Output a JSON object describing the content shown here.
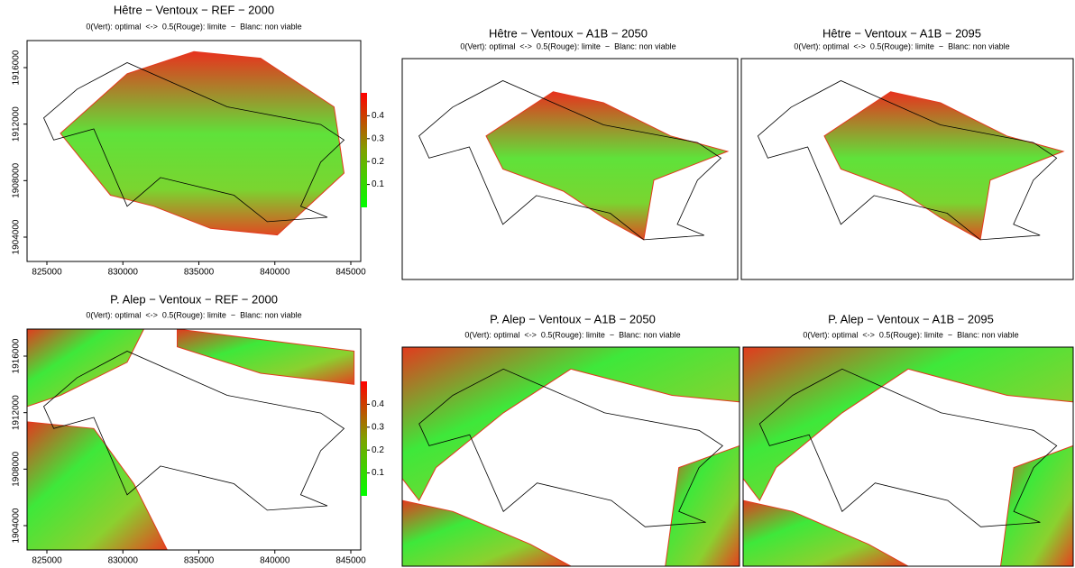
{
  "panels": [
    {
      "title": "Hêtre − Ventoux − REF − 2000",
      "subtitle": "0(Vert): optimal  <->  0.5(Rouge): limite  −  Blanc: non viable",
      "x_ticks": [
        825000,
        830000,
        835000,
        840000,
        845000
      ],
      "y_ticks": [
        1904000,
        1908000,
        1912000,
        1916000
      ],
      "colorbar_ticks": [
        0.1,
        0.2,
        0.3,
        0.4
      ]
    },
    {
      "title": "Hêtre − Ventoux − A1B − 2050",
      "subtitle": "0(Vert): optimal  <->  0.5(Rouge): limite  −  Blanc: non viable"
    },
    {
      "title": "Hêtre − Ventoux − A1B − 2095",
      "subtitle": "0(Vert): optimal  <->  0.5(Rouge): limite  −  Blanc: non viable"
    },
    {
      "title": "P. Alep − Ventoux − REF − 2000",
      "subtitle": "0(Vert): optimal  <->  0.5(Rouge): limite  −  Blanc: non viable",
      "x_ticks": [
        825000,
        830000,
        835000,
        840000,
        845000
      ],
      "y_ticks": [
        1904000,
        1908000,
        1912000,
        1916000
      ],
      "colorbar_ticks": [
        0.1,
        0.2,
        0.3,
        0.4
      ]
    },
    {
      "title": "P. Alep − Ventoux − A1B − 2050",
      "subtitle": "0(Vert): optimal  <->  0.5(Rouge): limite  −  Blanc: non viable"
    },
    {
      "title": "P. Alep − Ventoux − A1B − 2095",
      "subtitle": "0(Vert): optimal  <->  0.5(Rouge): limite  −  Blanc: non viable"
    }
  ]
}
